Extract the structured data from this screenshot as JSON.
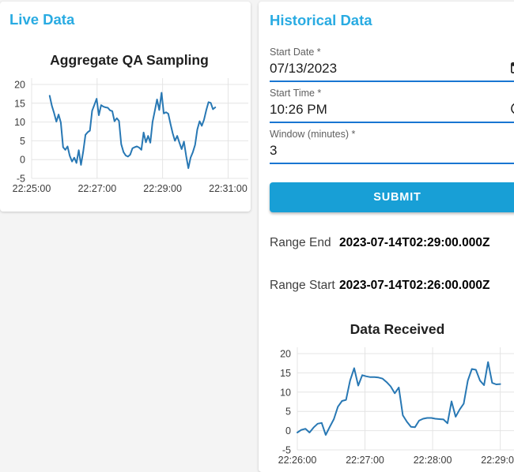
{
  "colors": {
    "accent": "#29abe2",
    "submit_button": "#189fd6",
    "field_underline": "#1976d2",
    "chart_line": "#2878b4",
    "gridline": "#e4e4e4"
  },
  "live_panel": {
    "title": "Live Data"
  },
  "historical_panel": {
    "title": "Historical Data",
    "form": {
      "fields": [
        {
          "label": "Start Date *",
          "value": "07/13/2023",
          "icon": "calendar-icon"
        },
        {
          "label": "Start Time *",
          "value": "10:26 PM",
          "icon": "clock-icon"
        },
        {
          "label": "Window (minutes) *",
          "value": "3",
          "icon": ""
        }
      ],
      "submit_label": "SUBMIT"
    },
    "results": [
      {
        "label": "Range End",
        "value": "2023-07-14T02:29:00.000Z"
      },
      {
        "label": "Range Start",
        "value": "2023-07-14T02:26:00.000Z"
      }
    ]
  },
  "chart_data": [
    {
      "type": "line",
      "title": "Aggregate QA Sampling",
      "xlabel": "",
      "ylabel": "",
      "x_tick_labels": [
        "22:25:00",
        "22:27:00",
        "22:29:00",
        "22:31:00"
      ],
      "x_tick_seconds": [
        0,
        120,
        240,
        360
      ],
      "x_domain_seconds": [
        0,
        397
      ],
      "x_start_label": "22:25:00",
      "x_start_seconds": 33,
      "x_step_seconds": 4.1,
      "y_ticks": [
        20,
        15,
        10,
        5,
        0,
        -5
      ],
      "ylim": [
        -5,
        20
      ],
      "grid": true,
      "legend": "none",
      "line_color": "#2878b4",
      "values": [
        17.0,
        14.3,
        12.4,
        10.1,
        12.0,
        9.9,
        3.3,
        2.6,
        3.5,
        1.0,
        -0.5,
        0.5,
        -0.9,
        2.5,
        -1.4,
        2.1,
        6.6,
        7.3,
        7.7,
        13.0,
        14.6,
        16.2,
        11.8,
        14.5,
        14.1,
        13.9,
        13.8,
        13.1,
        12.9,
        10.2,
        11.0,
        10.3,
        4.1,
        2.0,
        1.1,
        0.8,
        1.3,
        3.0,
        3.3,
        3.5,
        3.2,
        2.6,
        7.2,
        4.6,
        6.3,
        4.5,
        10.0,
        13.0,
        16.0,
        13.2,
        17.8,
        12.3,
        12.6,
        12.2,
        9.5,
        7.0,
        5.0,
        6.3,
        4.5,
        2.8,
        4.8,
        1.0,
        -2.3,
        0.5,
        2.0,
        3.9,
        8.0,
        10.2,
        9.0,
        10.6,
        13.2,
        15.3,
        15.1,
        13.4,
        13.9
      ]
    },
    {
      "type": "line",
      "title": "Data Received",
      "xlabel": "",
      "ylabel": "",
      "x_tick_labels": [
        "22:26:00",
        "22:27:00",
        "22:28:00",
        "22:29:00"
      ],
      "x_tick_seconds": [
        0,
        60,
        120,
        180
      ],
      "x_domain_seconds": [
        0,
        195
      ],
      "x_start_label": "22:26:00",
      "x_start_seconds": 0,
      "x_step_seconds": 3.6,
      "y_ticks": [
        20,
        15,
        10,
        5,
        0,
        -5
      ],
      "ylim": [
        -5,
        20
      ],
      "grid": true,
      "legend": "none",
      "line_color": "#2878b4",
      "values": [
        -0.5,
        0.2,
        0.5,
        -0.5,
        0.8,
        1.8,
        2.0,
        -1.1,
        1.0,
        3.0,
        6.2,
        7.7,
        8.0,
        13.0,
        16.2,
        11.7,
        14.4,
        14.1,
        13.9,
        13.9,
        13.8,
        13.5,
        12.6,
        11.5,
        9.7,
        11.2,
        4.0,
        2.3,
        1.0,
        0.9,
        2.6,
        3.1,
        3.3,
        3.3,
        3.1,
        3.0,
        2.9,
        1.9,
        7.6,
        3.6,
        5.5,
        7.0,
        13.0,
        16.0,
        15.8,
        13.0,
        11.8,
        17.8,
        12.4,
        12.0,
        12.1
      ]
    }
  ]
}
